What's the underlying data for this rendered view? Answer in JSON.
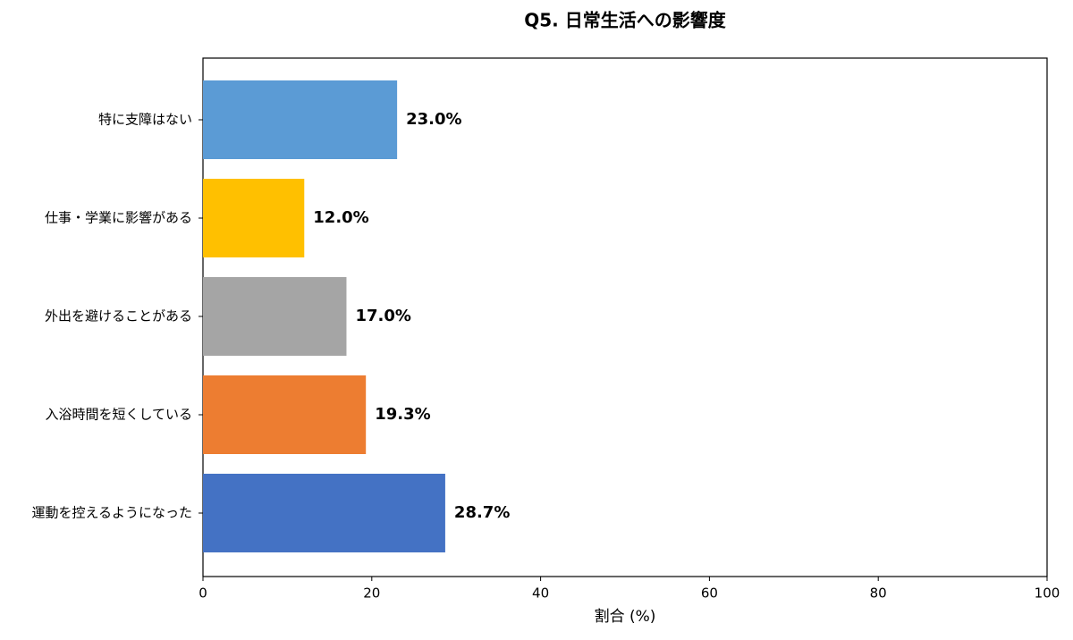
{
  "chart_data": {
    "type": "barh",
    "title": "Q5. 日常生活への影響度",
    "xlabel": "割合 (%)",
    "categories": [
      "特に支障はない",
      "仕事・学業に影響がある",
      "外出を避けることがある",
      "入浴時間を短くしている",
      "運動を控えるようになった"
    ],
    "values": [
      23.0,
      12.0,
      17.0,
      19.3,
      28.7
    ],
    "value_labels": [
      "23.0%",
      "12.0%",
      "17.0%",
      "19.3%",
      "28.7%"
    ],
    "colors": [
      "#5b9bd5",
      "#ffc000",
      "#a5a5a5",
      "#ed7d31",
      "#4472c4"
    ],
    "xlim": [
      0,
      100
    ],
    "xticks": [
      0,
      20,
      40,
      60,
      80,
      100
    ],
    "grid": false
  }
}
